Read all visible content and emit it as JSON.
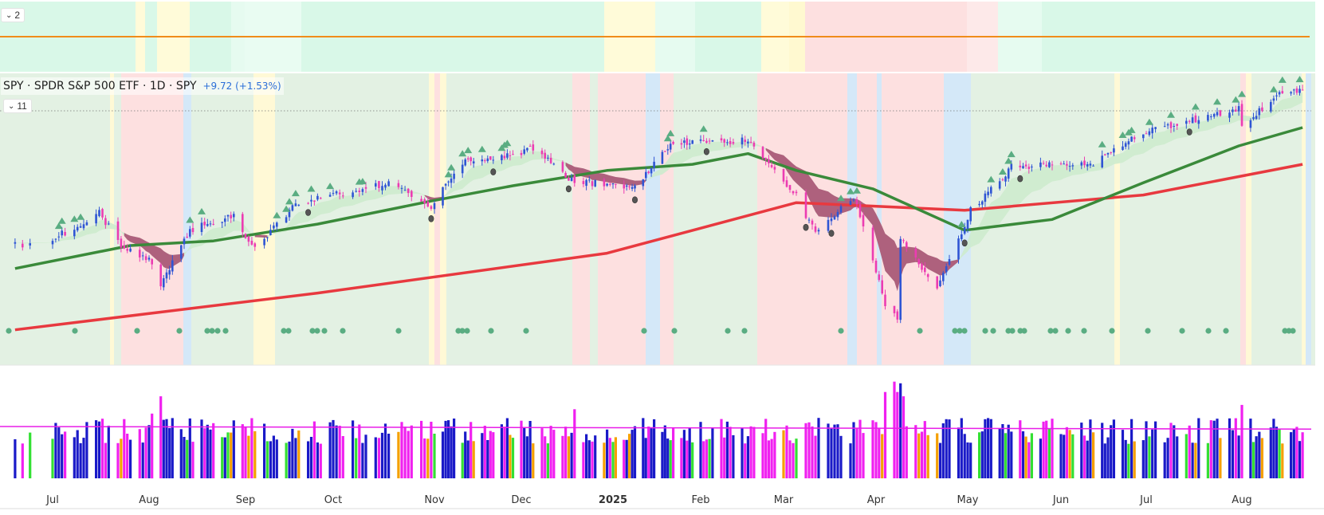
{
  "legend": {
    "title": "SPY · SPDR S&P 500 ETF · 1D · SPY",
    "change": "+9.72 (+1.53%)"
  },
  "panes": {
    "top_indicator_badge": "2",
    "main_indicator_badge": "11"
  },
  "colors": {
    "bg_green": "#e3f1e3",
    "bg_red": "#fde0e0",
    "bg_yellow": "#fff9d6",
    "bg_blue": "#d4e8f8",
    "top_green": "#d9f8e8",
    "top_red": "#fde0e0",
    "top_yellow": "#fffbd9",
    "top_line": "#f08c1a",
    "candle_up": "#2f55d4",
    "candle_down": "#ec3cb2",
    "sma50": "#3a8a3a",
    "sma200": "#e8393f",
    "ribbon_green": "#cdebcd",
    "ribbon_red": "#a8496e",
    "marker_triangle": "#5aad82",
    "marker_dot": "#5aad82",
    "marker_dark": "#555555",
    "vol_blue": "#1a1ac8",
    "vol_magenta": "#f020f0",
    "vol_orange": "#f5a000",
    "vol_green": "#33e033",
    "vol_ma": "#e81ee8"
  },
  "chart_data": {
    "type": "candlestick",
    "symbol": "SPY",
    "interval": "1D",
    "x_axis": {
      "labels": [
        "Jul",
        "Aug",
        "Sep",
        "Oct",
        "Nov",
        "Dec",
        "2025",
        "Feb",
        "Mar",
        "Apr",
        "May",
        "Jun",
        "Jul",
        "Aug"
      ]
    },
    "price": {
      "range": [
        466,
        646
      ],
      "close": [
        {
          "d": "2024-06-28",
          "c": 544
        },
        {
          "d": "2024-07-08",
          "c": 555
        },
        {
          "d": "2024-07-16",
          "c": 564
        },
        {
          "d": "2024-07-24",
          "c": 541
        },
        {
          "d": "2024-08-02",
          "c": 532
        },
        {
          "d": "2024-08-05",
          "c": 517
        },
        {
          "d": "2024-08-15",
          "c": 553
        },
        {
          "d": "2024-08-30",
          "c": 563
        },
        {
          "d": "2024-09-06",
          "c": 540
        },
        {
          "d": "2024-09-19",
          "c": 570
        },
        {
          "d": "2024-10-18",
          "c": 584
        },
        {
          "d": "2024-10-31",
          "c": 568
        },
        {
          "d": "2024-11-11",
          "c": 598
        },
        {
          "d": "2024-11-29",
          "c": 602
        },
        {
          "d": "2024-12-06",
          "c": 607
        },
        {
          "d": "2024-12-18",
          "c": 586
        },
        {
          "d": "2025-01-10",
          "c": 580
        },
        {
          "d": "2025-01-23",
          "c": 609
        },
        {
          "d": "2025-02-19",
          "c": 612
        },
        {
          "d": "2025-03-07",
          "c": 575
        },
        {
          "d": "2025-03-13",
          "c": 551
        },
        {
          "d": "2025-03-25",
          "c": 575
        },
        {
          "d": "2025-04-04",
          "c": 505
        },
        {
          "d": "2025-04-08",
          "c": 496
        },
        {
          "d": "2025-04-09",
          "c": 548
        },
        {
          "d": "2025-04-21",
          "c": 514
        },
        {
          "d": "2025-05-02",
          "c": 566
        },
        {
          "d": "2025-05-16",
          "c": 594
        },
        {
          "d": "2025-06-13",
          "c": 597
        },
        {
          "d": "2025-06-30",
          "c": 617
        },
        {
          "d": "2025-07-31",
          "c": 632
        },
        {
          "d": "2025-08-01",
          "c": 621
        },
        {
          "d": "2025-08-15",
          "c": 643
        },
        {
          "d": "2025-08-22",
          "c": 645
        }
      ],
      "sma50": [
        {
          "d": "2024-06-26",
          "v": 528
        },
        {
          "d": "2024-07-26",
          "v": 543
        },
        {
          "d": "2024-08-23",
          "v": 546
        },
        {
          "d": "2024-09-26",
          "v": 557
        },
        {
          "d": "2024-10-31",
          "v": 572
        },
        {
          "d": "2024-11-29",
          "v": 582
        },
        {
          "d": "2024-12-31",
          "v": 592
        },
        {
          "d": "2025-01-31",
          "v": 596
        },
        {
          "d": "2025-02-19",
          "v": 603
        },
        {
          "d": "2025-03-07",
          "v": 592
        },
        {
          "d": "2025-03-31",
          "v": 580
        },
        {
          "d": "2025-04-30",
          "v": 553
        },
        {
          "d": "2025-05-30",
          "v": 560
        },
        {
          "d": "2025-06-30",
          "v": 584
        },
        {
          "d": "2025-07-31",
          "v": 608
        },
        {
          "d": "2025-08-22",
          "v": 620
        }
      ],
      "sma200": [
        {
          "d": "2024-06-26",
          "v": 488
        },
        {
          "d": "2024-09-26",
          "v": 512
        },
        {
          "d": "2024-12-31",
          "v": 538
        },
        {
          "d": "2025-03-07",
          "v": 571
        },
        {
          "d": "2025-04-30",
          "v": 566
        },
        {
          "d": "2025-06-30",
          "v": 576
        },
        {
          "d": "2025-08-22",
          "v": 596
        }
      ]
    },
    "volume": {
      "range": [
        0,
        120
      ],
      "moving_average": 60
    }
  }
}
